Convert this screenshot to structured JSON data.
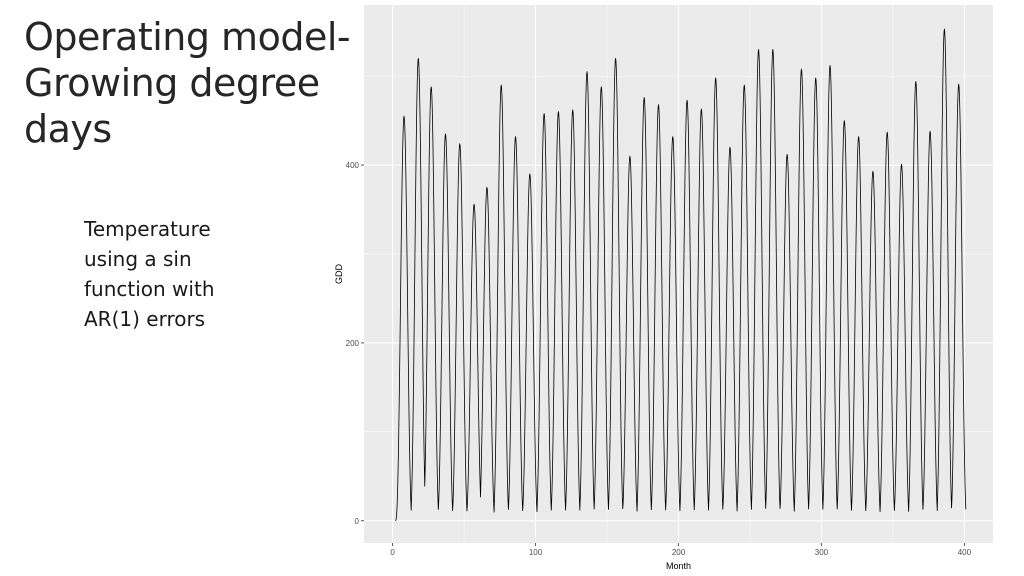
{
  "slide": {
    "title_lines": [
      "Operating model-",
      "Growing degree",
      "days"
    ],
    "bullet_lines": [
      "Temperature",
      "using a sin",
      "function with",
      "AR(1) errors"
    ]
  },
  "chart_data": {
    "type": "line",
    "title": "",
    "xlabel": "Month",
    "ylabel": "GDD",
    "xlim": [
      -20,
      420
    ],
    "ylim": [
      -25,
      580
    ],
    "x_ticks": [
      0,
      100,
      200,
      300,
      400
    ],
    "y_ticks": [
      0,
      200,
      400
    ],
    "grid": true,
    "colors": {
      "panel": "#ebebeb",
      "grid": "#ffffff",
      "line": "#000000"
    },
    "series": [
      {
        "peak_months": [
          8,
          18,
          27,
          37,
          47,
          57,
          66,
          76,
          86,
          96,
          106,
          116,
          126,
          136,
          146,
          156,
          166,
          176,
          186,
          196,
          206,
          216,
          226,
          236,
          246,
          256,
          266,
          276,
          286,
          296,
          306,
          316,
          326,
          336,
          346,
          356,
          366,
          376,
          386,
          396
        ],
        "peak_values": [
          455,
          520,
          488,
          435,
          424,
          356,
          375,
          490,
          432,
          390,
          458,
          460,
          462,
          505,
          488,
          520,
          410,
          476,
          468,
          432,
          473,
          463,
          498,
          420,
          490,
          530,
          530,
          412,
          508,
          498,
          512,
          450,
          432,
          393,
          437,
          401,
          494,
          438,
          553,
          491
        ]
      }
    ]
  }
}
